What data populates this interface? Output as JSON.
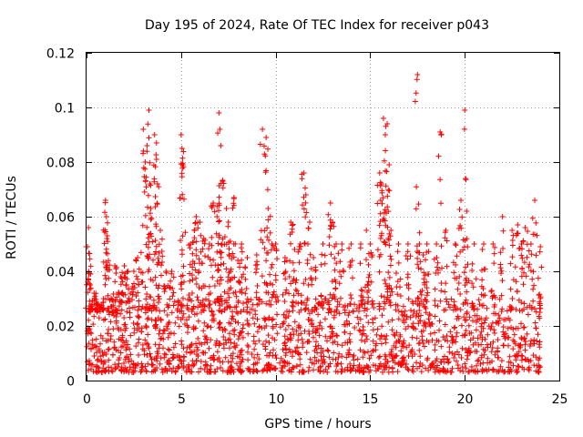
{
  "chart_data": {
    "type": "scatter",
    "title": "Day 195 of 2024, Rate Of TEC Index for receiver p043",
    "xlabel": "GPS time / hours",
    "ylabel": "ROTI / TECUs",
    "xlim": [
      0,
      25
    ],
    "ylim": [
      0,
      0.12
    ],
    "x_ticks": [
      0,
      5,
      10,
      15,
      20,
      25
    ],
    "x_tick_labels": [
      "0",
      "5",
      "10",
      "15",
      "20",
      "25"
    ],
    "y_ticks": [
      0,
      0.02,
      0.04,
      0.06,
      0.08,
      0.1,
      0.12
    ],
    "y_tick_labels": [
      "0",
      "0.02",
      "0.04",
      "0.06",
      "0.08",
      "0.1",
      "0.12"
    ],
    "grid": true,
    "marker": "plus",
    "color": "#ff0000",
    "series": [
      {
        "name": "ROTI",
        "x": [
          0.05,
          0.1,
          0.2,
          0.4,
          0.6,
          0.9,
          1.0,
          1.05,
          1.1,
          1.3,
          1.5,
          1.8,
          2.0,
          2.2,
          2.5,
          2.7,
          3.0,
          3.1,
          3.2,
          3.3,
          3.35,
          3.4,
          3.6,
          3.7,
          3.75,
          3.9,
          4.2,
          4.5,
          5.0,
          5.05,
          5.1,
          5.5,
          5.7,
          5.8,
          6.0,
          6.2,
          6.5,
          6.7,
          6.9,
          7.0,
          7.05,
          7.1,
          7.2,
          7.4,
          7.5,
          7.6,
          7.8,
          8.0,
          8.2,
          8.5,
          9.0,
          9.3,
          9.5,
          9.6,
          9.8,
          10.0,
          10.5,
          10.8,
          11.0,
          11.3,
          11.5,
          11.6,
          11.8,
          12.0,
          12.5,
          12.9,
          13.0,
          13.2,
          13.5,
          14.0,
          14.5,
          14.8,
          15.0,
          15.5,
          15.6,
          15.7,
          15.8,
          15.9,
          16.0,
          16.1,
          16.5,
          17.0,
          17.5,
          17.6,
          17.8,
          18.0,
          18.5,
          18.7,
          19.0,
          19.5,
          19.8,
          20.0,
          20.1,
          20.5,
          21.0,
          21.5,
          22.0,
          22.5,
          22.8,
          23.0,
          23.2,
          23.5,
          23.7,
          24.0
        ],
        "y": [
          0.049,
          0.056,
          0.035,
          0.032,
          0.028,
          0.03,
          0.066,
          0.06,
          0.053,
          0.03,
          0.042,
          0.038,
          0.042,
          0.04,
          0.04,
          0.045,
          0.092,
          0.08,
          0.086,
          0.099,
          0.072,
          0.063,
          0.09,
          0.087,
          0.072,
          0.055,
          0.04,
          0.04,
          0.09,
          0.085,
          0.079,
          0.05,
          0.055,
          0.06,
          0.058,
          0.052,
          0.05,
          0.065,
          0.06,
          0.098,
          0.092,
          0.086,
          0.073,
          0.063,
          0.058,
          0.051,
          0.067,
          0.044,
          0.05,
          0.045,
          0.046,
          0.092,
          0.089,
          0.063,
          0.05,
          0.05,
          0.045,
          0.058,
          0.048,
          0.05,
          0.076,
          0.068,
          0.058,
          0.045,
          0.05,
          0.065,
          0.058,
          0.05,
          0.05,
          0.05,
          0.05,
          0.055,
          0.05,
          0.076,
          0.072,
          0.096,
          0.09,
          0.094,
          0.079,
          0.055,
          0.05,
          0.05,
          0.112,
          0.05,
          0.046,
          0.05,
          0.05,
          0.091,
          0.055,
          0.05,
          0.066,
          0.099,
          0.062,
          0.05,
          0.05,
          0.05,
          0.06,
          0.055,
          0.057,
          0.05,
          0.056,
          0.05,
          0.066,
          0.049
        ]
      }
    ],
    "baseline": {
      "description": "dense band of points between 0.003 and 0.03",
      "x_range": [
        0,
        24
      ],
      "y_range": [
        0.003,
        0.03
      ]
    }
  }
}
